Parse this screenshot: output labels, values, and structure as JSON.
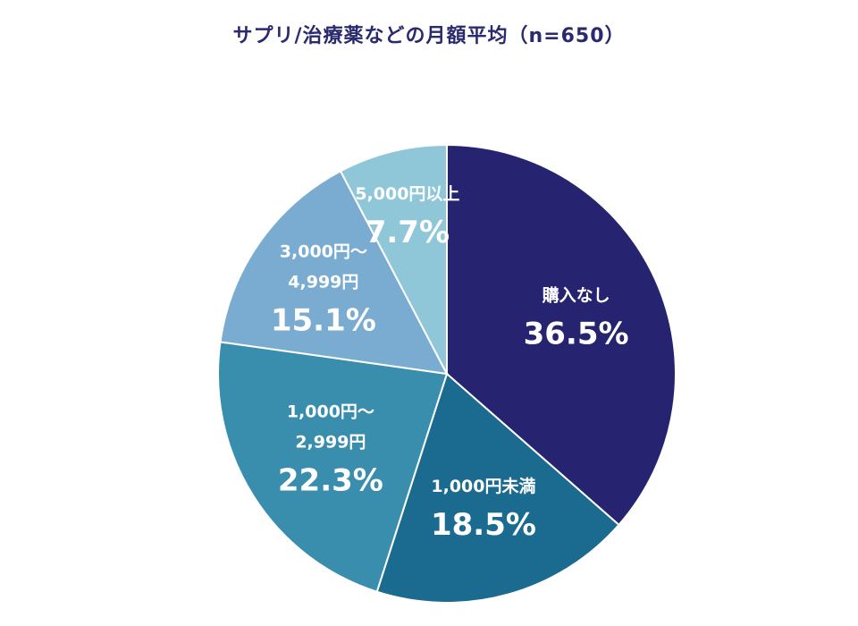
{
  "chart_data": {
    "type": "pie",
    "title": "サプリ/治療薬などの月額平均（n=650）",
    "slices": [
      {
        "label_lines": [
          "購入なし"
        ],
        "value": 36.5,
        "value_label": "36.5%",
        "color": "#262470"
      },
      {
        "label_lines": [
          "1,000円未満"
        ],
        "value": 18.5,
        "value_label": "18.5%",
        "color": "#1b6b90"
      },
      {
        "label_lines": [
          "1,000円～",
          "2,999円"
        ],
        "value": 22.3,
        "value_label": "22.3%",
        "color": "#3a8ead"
      },
      {
        "label_lines": [
          "3,000円～",
          "4,999円"
        ],
        "value": 15.1,
        "value_label": "15.1%",
        "color": "#79acd0"
      },
      {
        "label_lines": [
          "5,000円以上"
        ],
        "value": 7.7,
        "value_label": "7.7%",
        "color": "#8fc7d8"
      }
    ]
  }
}
